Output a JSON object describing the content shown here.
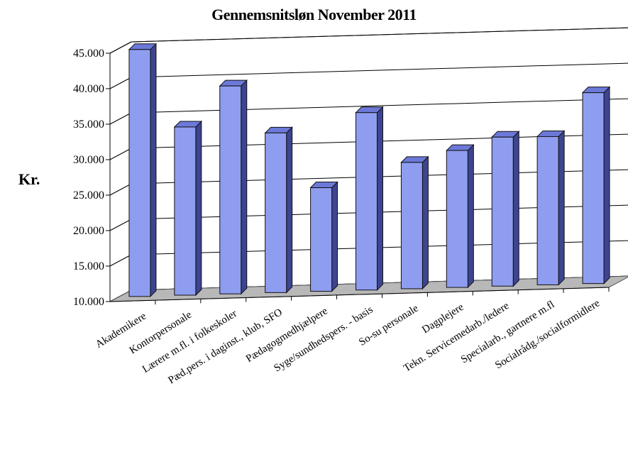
{
  "chart_data": {
    "type": "bar",
    "title": "Gennemsnitsløn November 2011",
    "ylabel": "Kr.",
    "xlabel": "",
    "ylim": [
      10000,
      45000
    ],
    "yticks": [
      "10.000",
      "15.000",
      "20.000",
      "25.000",
      "30.000",
      "35.000",
      "40.000",
      "45.000"
    ],
    "grid": true,
    "bar_color": "#8f9df0",
    "floor_color": "#b8b8b8",
    "categories": [
      "Akademikere",
      "Kontorpersonale",
      "Lærere m.fl. i folkeskoler",
      "Pæd.pers. i daginst., klub, SFO",
      "Pædagogmedhjælpere",
      "Syge/sundhedspers. - basis",
      "So-su personale",
      "Dagplejere",
      "Tekn. Servicemedarb./ledere",
      "Specialarb., gartnere m.fl",
      "Socialrådg./socialformidlere"
    ],
    "values": [
      44800,
      33700,
      39300,
      32500,
      24600,
      35000,
      27800,
      29300,
      31000,
      30900,
      36900
    ]
  }
}
